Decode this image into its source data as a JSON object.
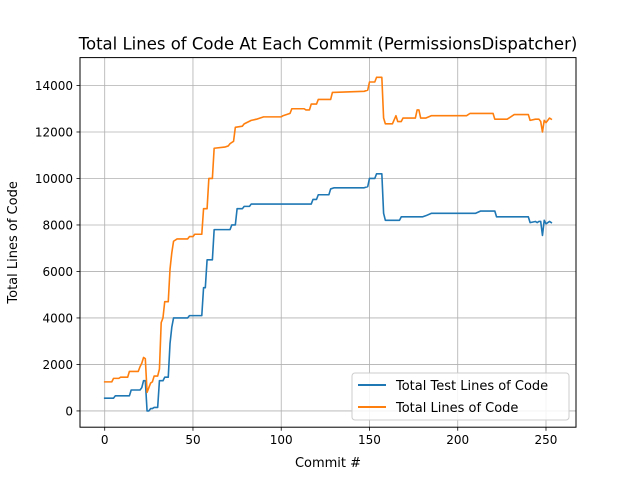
{
  "chart_data": {
    "type": "line",
    "title": "Total Lines of Code At Each Commit (PermissionsDispatcher)",
    "xlabel": "Commit #",
    "ylabel": "Total Lines of Code",
    "xlim": [
      -14,
      267
    ],
    "ylim": [
      -700,
      15200
    ],
    "xticks": [
      0,
      50,
      100,
      150,
      200,
      250
    ],
    "yticks": [
      0,
      2000,
      4000,
      6000,
      8000,
      10000,
      12000,
      14000
    ],
    "grid": true,
    "legend_position": "lower-right",
    "series": [
      {
        "name": "Total Test Lines of Code",
        "color": "#1f77b4",
        "points": [
          [
            0,
            550
          ],
          [
            5,
            550
          ],
          [
            6,
            650
          ],
          [
            14,
            650
          ],
          [
            15,
            900
          ],
          [
            20,
            900
          ],
          [
            21,
            1000
          ],
          [
            22,
            1300
          ],
          [
            23,
            1300
          ],
          [
            24,
            0
          ],
          [
            25,
            0
          ],
          [
            26,
            100
          ],
          [
            27,
            100
          ],
          [
            28,
            150
          ],
          [
            30,
            150
          ],
          [
            31,
            1300
          ],
          [
            33,
            1300
          ],
          [
            34,
            1450
          ],
          [
            36,
            1450
          ],
          [
            37,
            2900
          ],
          [
            38,
            3600
          ],
          [
            39,
            4000
          ],
          [
            47,
            4000
          ],
          [
            48,
            4100
          ],
          [
            55,
            4100
          ],
          [
            56,
            5300
          ],
          [
            57,
            5300
          ],
          [
            58,
            6500
          ],
          [
            61,
            6500
          ],
          [
            62,
            7800
          ],
          [
            71,
            7800
          ],
          [
            72,
            8000
          ],
          [
            74,
            8000
          ],
          [
            75,
            8700
          ],
          [
            78,
            8700
          ],
          [
            79,
            8800
          ],
          [
            82,
            8800
          ],
          [
            83,
            8900
          ],
          [
            117,
            8900
          ],
          [
            118,
            9100
          ],
          [
            120,
            9100
          ],
          [
            121,
            9300
          ],
          [
            127,
            9300
          ],
          [
            128,
            9550
          ],
          [
            130,
            9600
          ],
          [
            147,
            9600
          ],
          [
            149,
            9650
          ],
          [
            150,
            10000
          ],
          [
            153,
            10000
          ],
          [
            154,
            10200
          ],
          [
            157,
            10200
          ],
          [
            158,
            8500
          ],
          [
            159,
            8200
          ],
          [
            167,
            8200
          ],
          [
            168,
            8350
          ],
          [
            180,
            8350
          ],
          [
            182,
            8400
          ],
          [
            185,
            8500
          ],
          [
            210,
            8500
          ],
          [
            213,
            8600
          ],
          [
            221,
            8600
          ],
          [
            222,
            8350
          ],
          [
            240,
            8350
          ],
          [
            241,
            8100
          ],
          [
            244,
            8150
          ],
          [
            245,
            8100
          ],
          [
            246,
            8150
          ],
          [
            247,
            8150
          ],
          [
            248,
            7550
          ],
          [
            249,
            8200
          ],
          [
            250,
            8050
          ],
          [
            252,
            8150
          ],
          [
            253,
            8100
          ]
        ]
      },
      {
        "name": "Total Lines of Code",
        "color": "#ff7f0e",
        "points": [
          [
            0,
            1250
          ],
          [
            4,
            1250
          ],
          [
            5,
            1400
          ],
          [
            8,
            1400
          ],
          [
            9,
            1450
          ],
          [
            13,
            1450
          ],
          [
            14,
            1700
          ],
          [
            19,
            1700
          ],
          [
            20,
            1900
          ],
          [
            21,
            2050
          ],
          [
            22,
            2300
          ],
          [
            23,
            2250
          ],
          [
            24,
            800
          ],
          [
            25,
            1000
          ],
          [
            26,
            1200
          ],
          [
            27,
            1250
          ],
          [
            28,
            1500
          ],
          [
            30,
            1500
          ],
          [
            31,
            1800
          ],
          [
            32,
            3800
          ],
          [
            33,
            4000
          ],
          [
            34,
            4700
          ],
          [
            36,
            4700
          ],
          [
            37,
            6100
          ],
          [
            38,
            6800
          ],
          [
            39,
            7300
          ],
          [
            41,
            7400
          ],
          [
            47,
            7400
          ],
          [
            48,
            7500
          ],
          [
            50,
            7500
          ],
          [
            51,
            7600
          ],
          [
            55,
            7600
          ],
          [
            56,
            8700
          ],
          [
            58,
            8700
          ],
          [
            59,
            10000
          ],
          [
            61,
            10000
          ],
          [
            62,
            11300
          ],
          [
            68,
            11350
          ],
          [
            70,
            11400
          ],
          [
            71,
            11500
          ],
          [
            73,
            11600
          ],
          [
            74,
            12200
          ],
          [
            78,
            12250
          ],
          [
            79,
            12350
          ],
          [
            83,
            12500
          ],
          [
            86,
            12550
          ],
          [
            90,
            12650
          ],
          [
            100,
            12650
          ],
          [
            101,
            12700
          ],
          [
            105,
            12800
          ],
          [
            106,
            13000
          ],
          [
            113,
            13000
          ],
          [
            114,
            12950
          ],
          [
            116,
            12950
          ],
          [
            117,
            13200
          ],
          [
            120,
            13200
          ],
          [
            121,
            13400
          ],
          [
            128,
            13400
          ],
          [
            129,
            13700
          ],
          [
            147,
            13750
          ],
          [
            149,
            13800
          ],
          [
            150,
            14150
          ],
          [
            153,
            14150
          ],
          [
            154,
            14350
          ],
          [
            157,
            14350
          ],
          [
            158,
            12600
          ],
          [
            159,
            12350
          ],
          [
            163,
            12350
          ],
          [
            165,
            12700
          ],
          [
            166,
            12450
          ],
          [
            168,
            12450
          ],
          [
            169,
            12600
          ],
          [
            176,
            12600
          ],
          [
            177,
            12950
          ],
          [
            178,
            12950
          ],
          [
            179,
            12600
          ],
          [
            182,
            12600
          ],
          [
            185,
            12700
          ],
          [
            205,
            12700
          ],
          [
            207,
            12800
          ],
          [
            220,
            12800
          ],
          [
            221,
            12550
          ],
          [
            228,
            12550
          ],
          [
            232,
            12750
          ],
          [
            240,
            12750
          ],
          [
            241,
            12500
          ],
          [
            244,
            12550
          ],
          [
            246,
            12550
          ],
          [
            247,
            12450
          ],
          [
            248,
            12000
          ],
          [
            249,
            12500
          ],
          [
            250,
            12400
          ],
          [
            252,
            12600
          ],
          [
            253,
            12550
          ]
        ]
      }
    ]
  }
}
